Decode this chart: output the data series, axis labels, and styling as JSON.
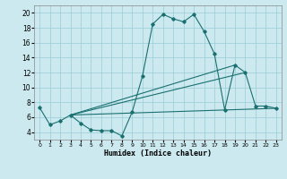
{
  "xlabel": "Humidex (Indice chaleur)",
  "xlim": [
    -0.5,
    23.5
  ],
  "ylim": [
    3.0,
    21.0
  ],
  "yticks": [
    4,
    6,
    8,
    10,
    12,
    14,
    16,
    18,
    20
  ],
  "xticks": [
    0,
    1,
    2,
    3,
    4,
    5,
    6,
    7,
    8,
    9,
    10,
    11,
    12,
    13,
    14,
    15,
    16,
    17,
    18,
    19,
    20,
    21,
    22,
    23
  ],
  "bg_color": "#cce9ef",
  "grid_color": "#99cdd6",
  "line_color": "#1a7070",
  "curve1_x": [
    0,
    1,
    2,
    3,
    4,
    5,
    6,
    7,
    8,
    9,
    10,
    11,
    12,
    13,
    14,
    15,
    16,
    17,
    18,
    19,
    20,
    21,
    22,
    23
  ],
  "curve1_y": [
    7.3,
    5.0,
    5.5,
    6.3,
    5.2,
    4.3,
    4.2,
    4.2,
    3.5,
    6.7,
    11.5,
    18.5,
    19.8,
    19.2,
    18.8,
    19.8,
    17.5,
    14.5,
    7.0,
    13.0,
    12.0,
    7.5,
    7.5,
    7.2
  ],
  "line2_x": [
    3,
    19
  ],
  "line2_y": [
    6.3,
    13.0
  ],
  "line3_x": [
    3,
    20
  ],
  "line3_y": [
    6.3,
    12.0
  ],
  "line4_x": [
    3,
    23
  ],
  "line4_y": [
    6.3,
    7.2
  ]
}
